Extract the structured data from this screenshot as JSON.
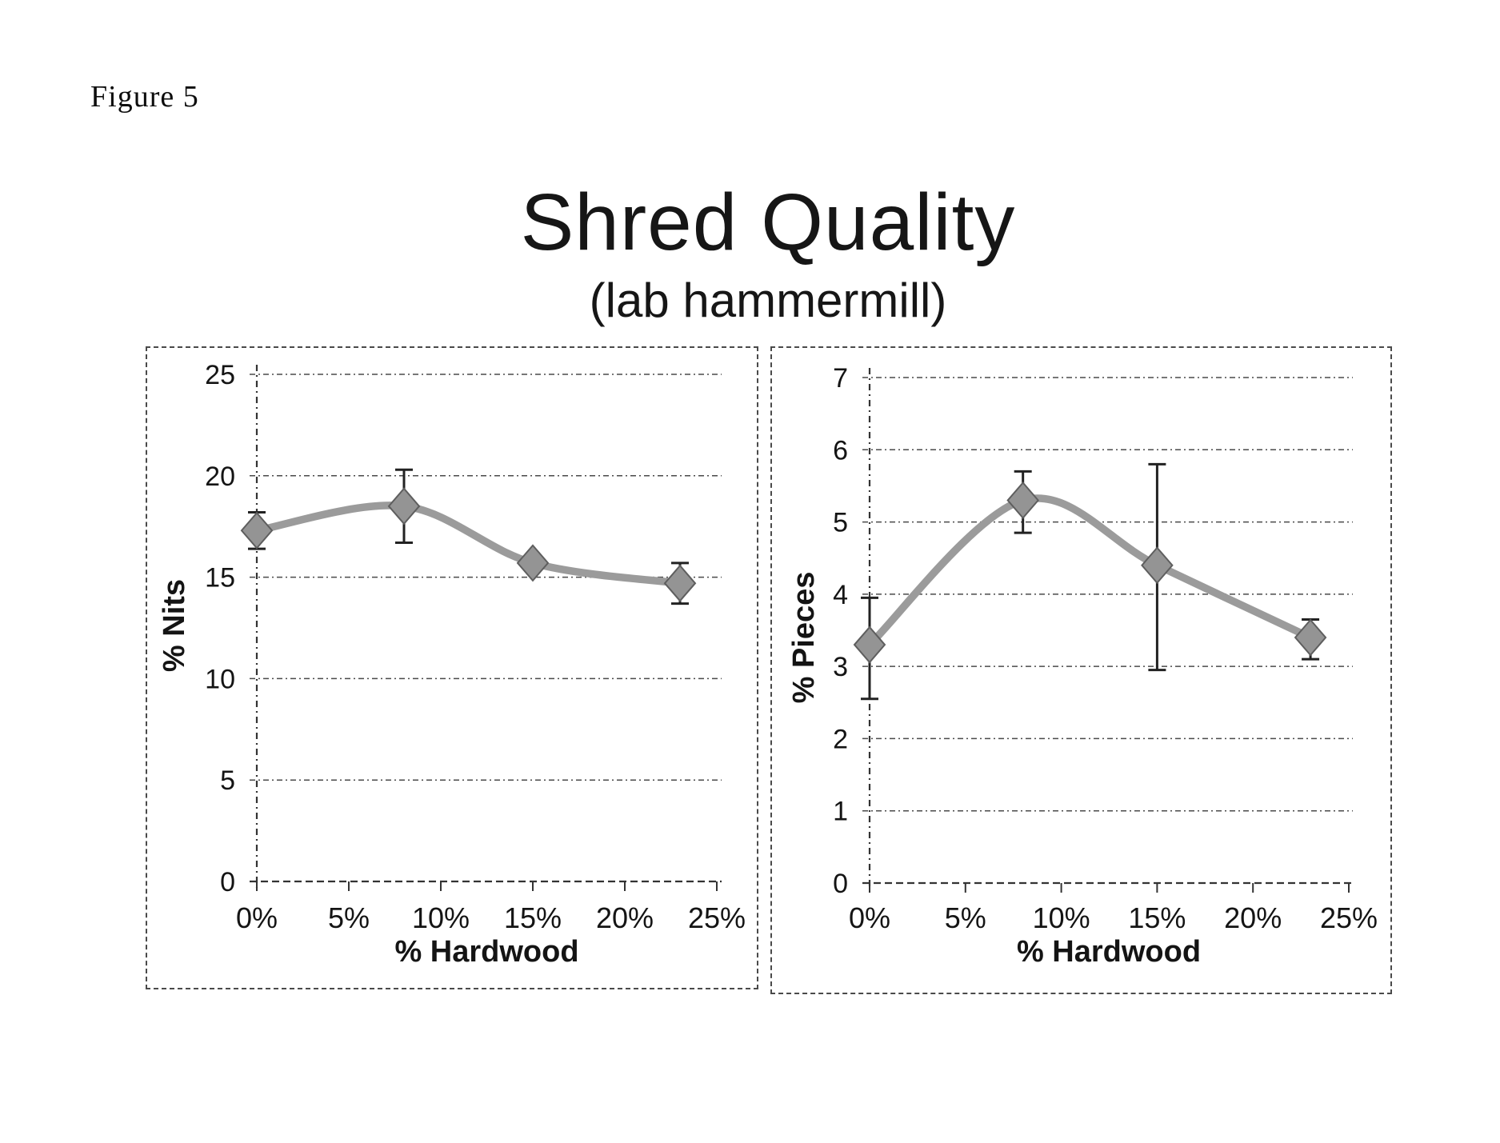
{
  "figure_label": "Figure 5",
  "title": "Shred Quality",
  "subtitle": "(lab hammermill)",
  "colors": {
    "line": "#9b9b9b",
    "marker_fill": "#949494",
    "marker_edge": "#5e5e5e",
    "error_bar": "#222222",
    "grid": "#4a4a4a",
    "axis": "#333333",
    "text": "#141414"
  },
  "chart_data": [
    {
      "type": "line",
      "name": "nits",
      "ylabel": "% Nits",
      "xlabel": "% Hardwood",
      "legend": "none",
      "grid": true,
      "smooth": true,
      "marker": "diamond",
      "x_percent": [
        0,
        8,
        15,
        23
      ],
      "y": [
        17.3,
        18.5,
        15.7,
        14.7
      ],
      "err_low": [
        16.4,
        16.7,
        null,
        13.7
      ],
      "err_high": [
        18.2,
        20.3,
        null,
        15.7
      ],
      "ylim": [
        0,
        25
      ],
      "yticks": [
        0,
        5,
        10,
        15,
        20,
        25
      ],
      "xtick_values": [
        0,
        5,
        10,
        15,
        20,
        25
      ],
      "xtick_labels": [
        "0%",
        "5%",
        "10%",
        "15%",
        "20%",
        "25%"
      ]
    },
    {
      "type": "line",
      "name": "pieces",
      "ylabel": "% Pieces",
      "xlabel": "% Hardwood",
      "legend": "none",
      "grid": true,
      "smooth": true,
      "marker": "diamond",
      "x_percent": [
        0,
        8,
        15,
        23
      ],
      "y": [
        3.3,
        5.3,
        4.4,
        3.4
      ],
      "err_low": [
        2.55,
        4.85,
        2.95,
        3.1
      ],
      "err_high": [
        3.95,
        5.7,
        5.8,
        3.65
      ],
      "ylim": [
        0,
        7
      ],
      "yticks": [
        0,
        1,
        2,
        3,
        4,
        5,
        6,
        7
      ],
      "xtick_values": [
        0,
        5,
        10,
        15,
        20,
        25
      ],
      "xtick_labels": [
        "0%",
        "5%",
        "10%",
        "15%",
        "20%",
        "25%"
      ]
    }
  ]
}
